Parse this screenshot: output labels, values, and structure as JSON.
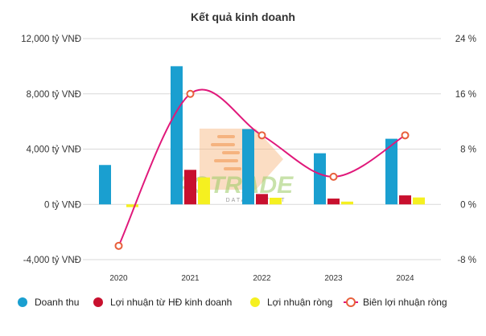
{
  "chart_data": {
    "type": "bar",
    "title": "Kết quả kinh doanh",
    "categories": [
      "2020",
      "2021",
      "2022",
      "2023",
      "2024"
    ],
    "y_left": {
      "ticks": [
        12000,
        8000,
        4000,
        0,
        -4000
      ],
      "tick_labels": [
        "12,000 tỷ VNĐ",
        "8,000 tỷ VNĐ",
        "4,000 tỷ VNĐ",
        "0 tỷ VNĐ",
        "-4,000 tỷ VNĐ"
      ],
      "ylim": [
        -4000,
        12000
      ]
    },
    "y_right": {
      "ticks": [
        24,
        16,
        8,
        0,
        -8
      ],
      "tick_labels": [
        "24 %",
        "16 %",
        "8 %",
        "0 %",
        "-8 %"
      ],
      "ylim": [
        -8,
        24
      ]
    },
    "series": [
      {
        "name": "Doanh thu",
        "type": "bar",
        "axis": "left",
        "color": "#1a9fd0",
        "values": [
          2850,
          10000,
          5450,
          3700,
          4750
        ]
      },
      {
        "name": "Lợi nhuận từ HĐ kinh doanh",
        "type": "bar",
        "axis": "left",
        "color": "#c8102e",
        "values": [
          0,
          2500,
          750,
          420,
          650
        ]
      },
      {
        "name": "Lợi nhuận ròng",
        "type": "bar",
        "axis": "left",
        "color": "#f5f020",
        "values": [
          -200,
          1950,
          480,
          200,
          500
        ]
      },
      {
        "name": "Biên lợi nhuận ròng",
        "type": "line",
        "axis": "right",
        "color": "#e0187a",
        "marker_color": "#e8603c",
        "values": [
          -6,
          16,
          10,
          4,
          10
        ]
      }
    ],
    "legend_position": "bottom",
    "grid": true,
    "watermark": {
      "text": "AGTRADE",
      "subtext": "DATA - INVEST"
    }
  }
}
